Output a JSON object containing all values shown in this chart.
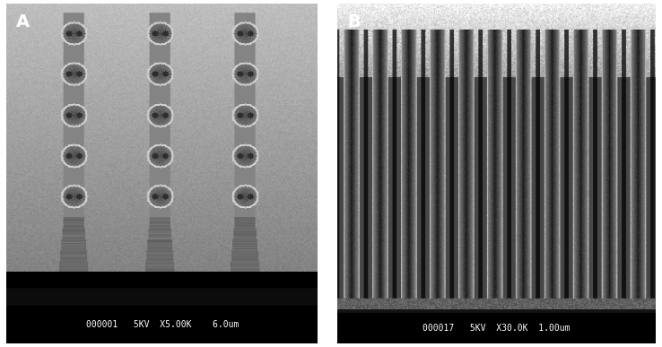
{
  "fig_width": 7.38,
  "fig_height": 3.87,
  "dpi": 100,
  "panel_A": {
    "label": "A",
    "label_fontsize": 14,
    "label_color": "white",
    "label_fontweight": "bold",
    "metadata_text": "000001   5KV  X5.00K    6.0um",
    "meta_fontsize": 7,
    "meta_color": "white",
    "meta_bg": "black"
  },
  "panel_B": {
    "label": "B",
    "label_fontsize": 14,
    "label_color": "white",
    "label_fontweight": "bold",
    "metadata_text": "000017   5KV  X30.0K  1.00um",
    "meta_fontsize": 7,
    "meta_color": "white",
    "meta_bg": "black"
  },
  "outer_bg": "#ffffff"
}
